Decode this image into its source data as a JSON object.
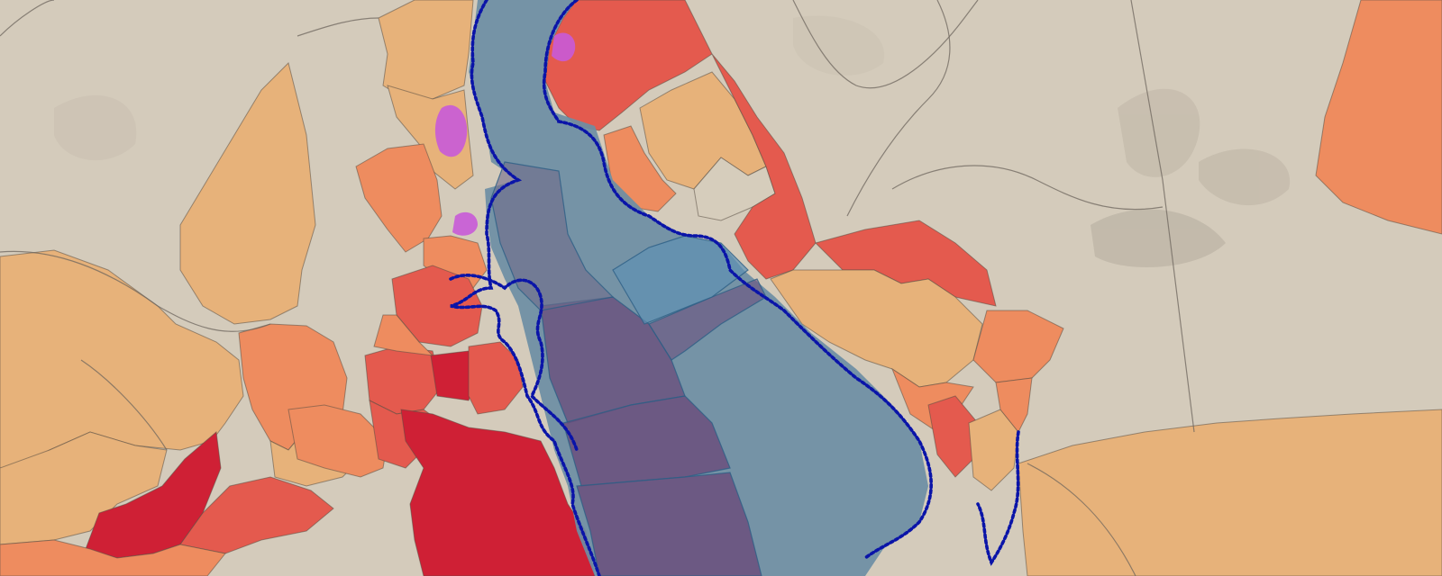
{
  "map": {
    "layers": [
      "basemap-satellite",
      "tract-choropleth",
      "flood-zones",
      "coastline-boundary"
    ],
    "classes": [
      {
        "id": "none",
        "color": "#d6cdbc"
      },
      {
        "id": "low",
        "color": "#e7b27a"
      },
      {
        "id": "medium",
        "color": "#ee8c5f"
      },
      {
        "id": "high",
        "color": "#e45a4e"
      },
      {
        "id": "veryhigh",
        "color": "#cf2035"
      },
      {
        "id": "special",
        "color": "#c85ad8"
      }
    ],
    "water_colors": {
      "river": "#6c8ea4",
      "flood": "#5e90b4",
      "deep": "#6a4b7a"
    },
    "boundary_color": "#0a14a8"
  }
}
